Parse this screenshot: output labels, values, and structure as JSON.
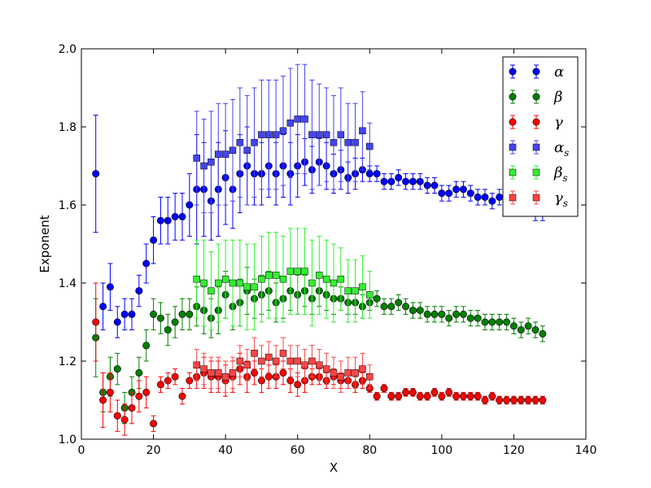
{
  "chart_data": {
    "type": "scatter",
    "title": "",
    "xlabel": "X",
    "ylabel": "Exponent",
    "xlim": [
      0,
      140
    ],
    "ylim": [
      1.0,
      2.0
    ],
    "xticks": [
      0,
      20,
      40,
      60,
      80,
      100,
      120,
      140
    ],
    "yticks": [
      1.0,
      1.2,
      1.4,
      1.6,
      1.8,
      2.0
    ],
    "xtick_labels": [
      "0",
      "20",
      "40",
      "60",
      "80",
      "100",
      "120",
      "140"
    ],
    "ytick_labels": [
      "1.0",
      "1.2",
      "1.4",
      "1.6",
      "1.8",
      "2.0"
    ],
    "grid": false,
    "legend_position": "top-right",
    "series": [
      {
        "name": "α",
        "sub": "",
        "marker": "circle",
        "color": "#0000ff",
        "x": [
          4,
          6,
          8,
          10,
          12,
          14,
          16,
          18,
          20,
          22,
          24,
          26,
          28,
          30,
          32,
          34,
          36,
          38,
          40,
          42,
          44,
          46,
          48,
          50,
          52,
          54,
          56,
          58,
          60,
          62,
          64,
          66,
          68,
          70,
          72,
          74,
          76,
          78,
          80,
          82,
          84,
          86,
          88,
          90,
          92,
          94,
          96,
          98,
          100,
          102,
          104,
          106,
          108,
          110,
          112,
          114,
          116,
          118,
          120,
          122,
          124,
          126,
          128
        ],
        "y": [
          1.68,
          1.34,
          1.39,
          1.3,
          1.32,
          1.32,
          1.38,
          1.45,
          1.51,
          1.56,
          1.56,
          1.57,
          1.57,
          1.6,
          1.64,
          1.64,
          1.61,
          1.64,
          1.67,
          1.64,
          1.68,
          1.7,
          1.68,
          1.68,
          1.7,
          1.68,
          1.7,
          1.68,
          1.7,
          1.71,
          1.69,
          1.71,
          1.7,
          1.68,
          1.69,
          1.67,
          1.68,
          1.69,
          1.68,
          1.68,
          1.66,
          1.66,
          1.67,
          1.66,
          1.66,
          1.66,
          1.65,
          1.65,
          1.63,
          1.63,
          1.64,
          1.64,
          1.63,
          1.62,
          1.62,
          1.61,
          1.62,
          1.61,
          1.62,
          1.61,
          1.6,
          1.58,
          1.58
        ],
        "err": [
          0.15,
          0.06,
          0.06,
          0.04,
          0.04,
          0.04,
          0.04,
          0.05,
          0.06,
          0.06,
          0.06,
          0.06,
          0.06,
          0.08,
          0.14,
          0.12,
          0.1,
          0.12,
          0.12,
          0.1,
          0.1,
          0.1,
          0.08,
          0.08,
          0.08,
          0.08,
          0.08,
          0.08,
          0.08,
          0.06,
          0.06,
          0.06,
          0.06,
          0.05,
          0.05,
          0.04,
          0.04,
          0.03,
          0.02,
          0.02,
          0.02,
          0.02,
          0.02,
          0.02,
          0.02,
          0.02,
          0.02,
          0.02,
          0.02,
          0.02,
          0.02,
          0.02,
          0.02,
          0.02,
          0.02,
          0.02,
          0.02,
          0.02,
          0.02,
          0.02,
          0.02,
          0.02,
          0.02
        ]
      },
      {
        "name": "β",
        "sub": "",
        "marker": "circle",
        "color": "#007f00",
        "x": [
          4,
          6,
          8,
          10,
          12,
          14,
          16,
          18,
          20,
          22,
          24,
          26,
          28,
          30,
          32,
          34,
          36,
          38,
          40,
          42,
          44,
          46,
          48,
          50,
          52,
          54,
          56,
          58,
          60,
          62,
          64,
          66,
          68,
          70,
          72,
          74,
          76,
          78,
          80,
          82,
          84,
          86,
          88,
          90,
          92,
          94,
          96,
          98,
          100,
          102,
          104,
          106,
          108,
          110,
          112,
          114,
          116,
          118,
          120,
          122,
          124,
          126,
          128
        ],
        "y": [
          1.26,
          1.12,
          1.16,
          1.18,
          1.08,
          1.12,
          1.17,
          1.24,
          1.32,
          1.31,
          1.28,
          1.3,
          1.32,
          1.32,
          1.34,
          1.33,
          1.31,
          1.33,
          1.37,
          1.34,
          1.35,
          1.38,
          1.36,
          1.37,
          1.38,
          1.35,
          1.36,
          1.38,
          1.37,
          1.38,
          1.36,
          1.38,
          1.37,
          1.36,
          1.36,
          1.35,
          1.35,
          1.34,
          1.35,
          1.36,
          1.34,
          1.34,
          1.35,
          1.34,
          1.33,
          1.33,
          1.32,
          1.32,
          1.32,
          1.31,
          1.32,
          1.32,
          1.31,
          1.31,
          1.3,
          1.3,
          1.3,
          1.3,
          1.29,
          1.28,
          1.29,
          1.28,
          1.27
        ],
        "err": [
          0.1,
          0.05,
          0.05,
          0.04,
          0.04,
          0.04,
          0.04,
          0.04,
          0.04,
          0.04,
          0.04,
          0.04,
          0.04,
          0.04,
          0.05,
          0.06,
          0.05,
          0.06,
          0.06,
          0.06,
          0.06,
          0.06,
          0.05,
          0.05,
          0.05,
          0.05,
          0.05,
          0.05,
          0.05,
          0.04,
          0.04,
          0.04,
          0.04,
          0.04,
          0.03,
          0.03,
          0.03,
          0.03,
          0.02,
          0.02,
          0.02,
          0.02,
          0.02,
          0.02,
          0.02,
          0.02,
          0.02,
          0.02,
          0.02,
          0.02,
          0.02,
          0.02,
          0.02,
          0.02,
          0.02,
          0.02,
          0.02,
          0.02,
          0.02,
          0.02,
          0.02,
          0.02,
          0.02
        ]
      },
      {
        "name": "γ",
        "sub": "",
        "marker": "circle",
        "color": "#ff0000",
        "x": [
          4,
          6,
          8,
          10,
          12,
          14,
          16,
          18,
          20,
          22,
          24,
          26,
          28,
          30,
          32,
          34,
          36,
          38,
          40,
          42,
          44,
          46,
          48,
          50,
          52,
          54,
          56,
          58,
          60,
          62,
          64,
          66,
          68,
          70,
          72,
          74,
          76,
          78,
          80,
          82,
          84,
          86,
          88,
          90,
          92,
          94,
          96,
          98,
          100,
          102,
          104,
          106,
          108,
          110,
          112,
          114,
          116,
          118,
          120,
          122,
          124,
          126,
          128
        ],
        "y": [
          1.3,
          1.1,
          1.12,
          1.06,
          1.05,
          1.08,
          1.11,
          1.12,
          1.04,
          1.14,
          1.15,
          1.16,
          1.11,
          1.15,
          1.16,
          1.17,
          1.16,
          1.16,
          1.15,
          1.16,
          1.18,
          1.16,
          1.17,
          1.15,
          1.16,
          1.16,
          1.17,
          1.15,
          1.14,
          1.15,
          1.16,
          1.16,
          1.15,
          1.16,
          1.15,
          1.15,
          1.14,
          1.15,
          1.13,
          1.11,
          1.13,
          1.11,
          1.11,
          1.12,
          1.12,
          1.11,
          1.11,
          1.12,
          1.11,
          1.12,
          1.11,
          1.11,
          1.11,
          1.11,
          1.1,
          1.11,
          1.1,
          1.1,
          1.1,
          1.1,
          1.1,
          1.1,
          1.1
        ],
        "err": [
          0.1,
          0.07,
          0.05,
          0.04,
          0.04,
          0.04,
          0.04,
          0.04,
          0.02,
          0.02,
          0.02,
          0.02,
          0.02,
          0.02,
          0.03,
          0.04,
          0.04,
          0.04,
          0.04,
          0.04,
          0.04,
          0.04,
          0.03,
          0.03,
          0.03,
          0.03,
          0.03,
          0.03,
          0.03,
          0.03,
          0.02,
          0.02,
          0.02,
          0.02,
          0.02,
          0.02,
          0.02,
          0.02,
          0.01,
          0.01,
          0.01,
          0.01,
          0.01,
          0.01,
          0.01,
          0.01,
          0.01,
          0.01,
          0.01,
          0.01,
          0.01,
          0.01,
          0.01,
          0.01,
          0.01,
          0.01,
          0.01,
          0.01,
          0.01,
          0.01,
          0.01,
          0.01,
          0.01
        ]
      },
      {
        "name": "α",
        "sub": "s",
        "marker": "square",
        "color": "#4444ee",
        "x": [
          32,
          34,
          36,
          38,
          40,
          42,
          44,
          46,
          48,
          50,
          52,
          54,
          56,
          58,
          60,
          62,
          64,
          66,
          68,
          70,
          72,
          74,
          76,
          78,
          80
        ],
        "y": [
          1.72,
          1.7,
          1.71,
          1.73,
          1.73,
          1.74,
          1.76,
          1.74,
          1.76,
          1.78,
          1.78,
          1.78,
          1.79,
          1.81,
          1.82,
          1.82,
          1.78,
          1.78,
          1.78,
          1.76,
          1.78,
          1.76,
          1.76,
          1.79,
          1.75
        ],
        "err": [
          0.12,
          0.12,
          0.13,
          0.13,
          0.13,
          0.13,
          0.14,
          0.14,
          0.14,
          0.14,
          0.14,
          0.14,
          0.14,
          0.14,
          0.14,
          0.14,
          0.14,
          0.13,
          0.12,
          0.12,
          0.12,
          0.1,
          0.1,
          0.1,
          0.06
        ]
      },
      {
        "name": "β",
        "sub": "s",
        "marker": "square",
        "color": "#33ee33",
        "x": [
          32,
          34,
          36,
          38,
          40,
          42,
          44,
          46,
          48,
          50,
          52,
          54,
          56,
          58,
          60,
          62,
          64,
          66,
          68,
          70,
          72,
          74,
          76,
          78,
          80
        ],
        "y": [
          1.41,
          1.4,
          1.38,
          1.4,
          1.41,
          1.4,
          1.4,
          1.39,
          1.39,
          1.41,
          1.42,
          1.42,
          1.41,
          1.43,
          1.43,
          1.43,
          1.4,
          1.42,
          1.41,
          1.4,
          1.41,
          1.38,
          1.38,
          1.39,
          1.37
        ],
        "err": [
          0.1,
          0.11,
          0.1,
          0.1,
          0.1,
          0.11,
          0.11,
          0.11,
          0.11,
          0.11,
          0.11,
          0.11,
          0.11,
          0.11,
          0.11,
          0.11,
          0.11,
          0.1,
          0.1,
          0.1,
          0.08,
          0.08,
          0.08,
          0.08,
          0.06
        ]
      },
      {
        "name": "γ",
        "sub": "s",
        "marker": "square",
        "color": "#ff4444",
        "x": [
          32,
          34,
          36,
          38,
          40,
          42,
          44,
          46,
          48,
          50,
          52,
          54,
          56,
          58,
          60,
          62,
          64,
          66,
          68,
          70,
          72,
          74,
          76,
          78,
          80
        ],
        "y": [
          1.19,
          1.18,
          1.17,
          1.17,
          1.16,
          1.17,
          1.2,
          1.19,
          1.22,
          1.2,
          1.21,
          1.2,
          1.22,
          1.2,
          1.2,
          1.19,
          1.2,
          1.19,
          1.18,
          1.17,
          1.16,
          1.17,
          1.17,
          1.18,
          1.16
        ],
        "err": [
          0.04,
          0.04,
          0.04,
          0.04,
          0.04,
          0.04,
          0.04,
          0.04,
          0.04,
          0.04,
          0.04,
          0.04,
          0.04,
          0.04,
          0.04,
          0.04,
          0.04,
          0.04,
          0.04,
          0.04,
          0.04,
          0.04,
          0.04,
          0.04,
          0.03
        ]
      }
    ]
  }
}
